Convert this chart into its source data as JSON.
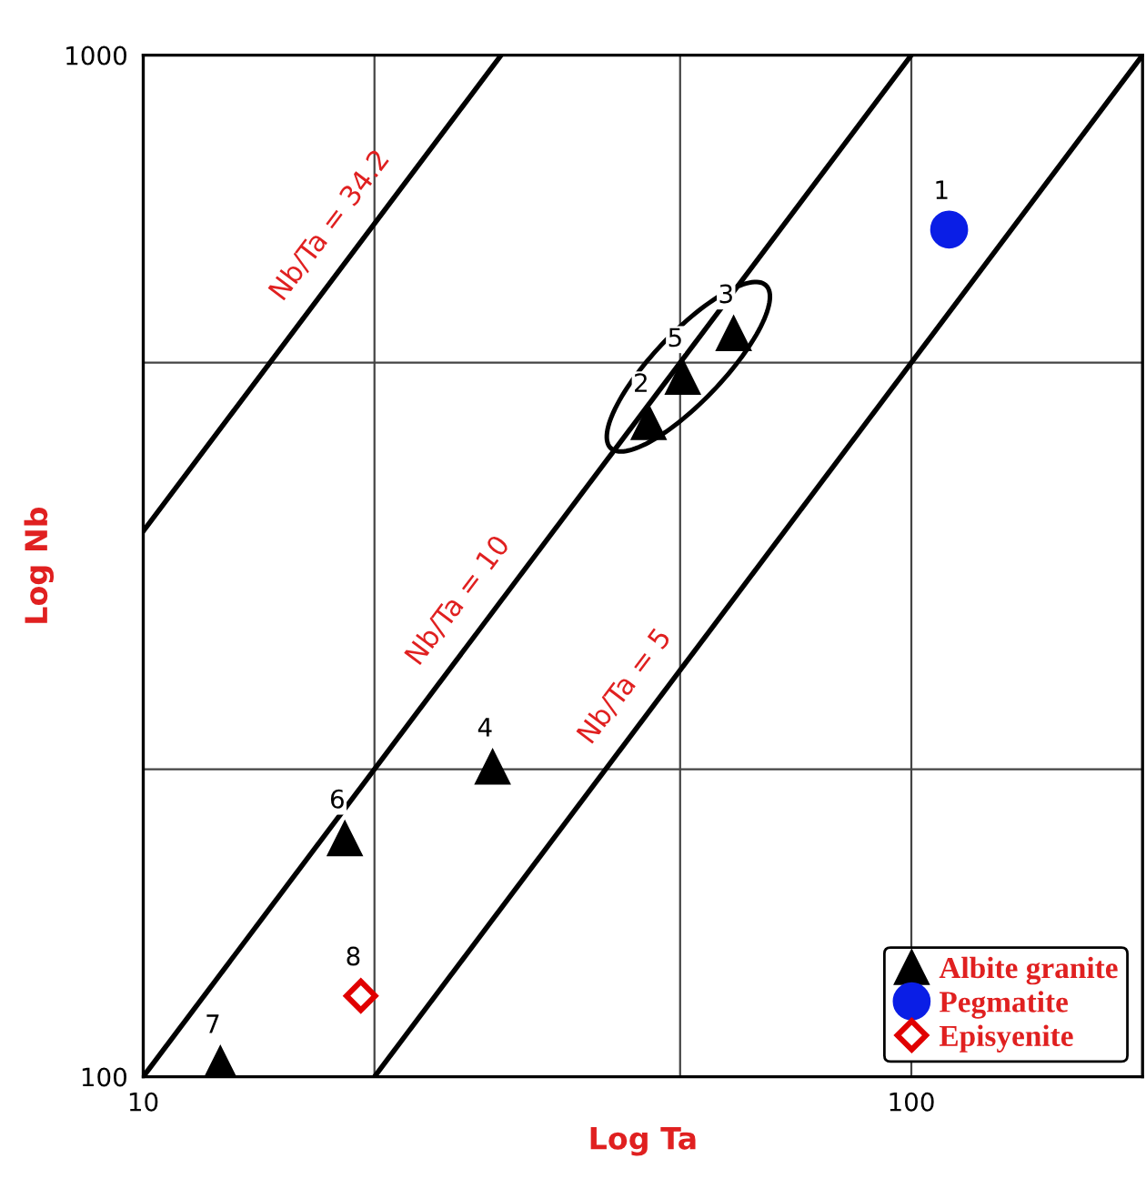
{
  "chart_data": {
    "type": "scatter",
    "xlabel": "Log Ta",
    "ylabel": "Log Nb",
    "log": "xy",
    "xlim": [
      10,
      200
    ],
    "ylim": [
      100,
      1000
    ],
    "xticks": [
      10,
      {
        "value": 20,
        "label": null
      },
      {
        "value": 50,
        "label": null
      },
      100
    ],
    "yticks": [
      100,
      {
        "value": 200,
        "label": null
      },
      {
        "value": 500,
        "label": null
      },
      1000
    ],
    "grid": true,
    "legend": "bottom right",
    "series": [
      {
        "type": "line",
        "color": "#000000",
        "x": [
          10,
          29.24
        ],
        "values": [
          342,
          1000
        ]
      },
      {
        "type": "line",
        "color": "#000000",
        "x": [
          10,
          100
        ],
        "values": [
          100,
          1000
        ]
      },
      {
        "type": "line",
        "color": "#000000",
        "x": [
          20,
          200
        ],
        "values": [
          100,
          1000
        ]
      },
      {
        "name": "Albite granite",
        "color": "#000000",
        "marker": "triangle",
        "x": [
          45.5,
          58.7,
          28.5,
          50.4,
          18.3,
          12.6
        ],
        "values": [
          437,
          534,
          201,
          484,
          171,
          103
        ]
      },
      {
        "name": "Pegmatite",
        "color": "#0a1ee6",
        "marker": "circle",
        "x": [
          112
        ],
        "values": [
          675
        ]
      },
      {
        "name": "Episyenite",
        "color": "#e00000",
        "marker": "diamond",
        "x": [
          19.2
        ],
        "values": [
          120
        ]
      }
    ],
    "annotations": [
      {
        "text": "Nb/Ta = 34.2",
        "x": 19,
        "y": 650
      },
      {
        "text": "Nb/Ta = 10",
        "x": 27.9,
        "y": 279
      },
      {
        "text": "Nb/Ta = 5",
        "x": 46,
        "y": 230
      },
      {
        "text": "1",
        "x": 112,
        "y": 675
      },
      {
        "text": "2",
        "x": 45.5,
        "y": 437
      },
      {
        "text": "3",
        "x": 58.7,
        "y": 534
      },
      {
        "text": "4",
        "x": 28.5,
        "y": 201
      },
      {
        "text": "5",
        "x": 50.4,
        "y": 484
      },
      {
        "text": "6",
        "x": 18.3,
        "y": 171
      },
      {
        "text": "7",
        "x": 12.6,
        "y": 103
      },
      {
        "text": "8",
        "x": 19.2,
        "y": 120
      }
    ]
  }
}
